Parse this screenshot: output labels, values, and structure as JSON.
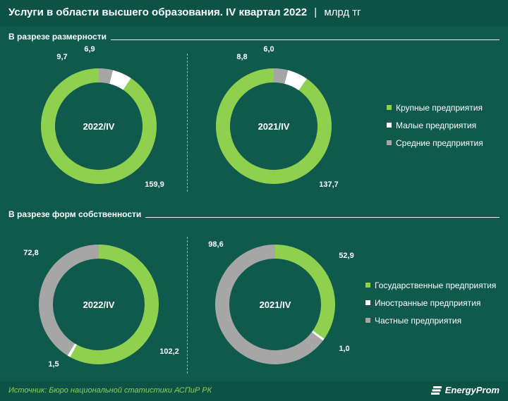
{
  "title": {
    "main": "Услуги в области высшего образования. IV квартал 2022",
    "separator": "|",
    "unit": "млрд тг"
  },
  "colors": {
    "background": "#0f5a4c",
    "green": "#8fd14f",
    "white": "#ffffff",
    "gray": "#a6a6a6"
  },
  "chart_data": [
    {
      "type": "pie",
      "section": "В разрезе размерности",
      "center_label": "2022/IV",
      "categories": [
        "Крупные предприятия",
        "Малые предприятия",
        "Средние предприятия"
      ],
      "values": [
        159.9,
        9.7,
        6.9
      ],
      "labels": [
        "159,9",
        "9,7",
        "6,9"
      ]
    },
    {
      "type": "pie",
      "section": "В разрезе размерности",
      "center_label": "2021/IV",
      "categories": [
        "Крупные предприятия",
        "Малые предприятия",
        "Средние предприятия"
      ],
      "values": [
        137.7,
        8.8,
        6.0
      ],
      "labels": [
        "137,7",
        "8,8",
        "6,0"
      ]
    },
    {
      "type": "pie",
      "section": "В разрезе форм собственности",
      "center_label": "2022/IV",
      "categories": [
        "Государственные предприятия",
        "Иностранные предприятия",
        "Частные предприятия"
      ],
      "values": [
        102.2,
        1.5,
        72.8
      ],
      "labels": [
        "102,2",
        "1,5",
        "72,8"
      ]
    },
    {
      "type": "pie",
      "section": "В разрезе форм собственности",
      "center_label": "2021/IV",
      "categories": [
        "Государственные предприятия",
        "Иностранные предприятия",
        "Частные предприятия"
      ],
      "values": [
        52.9,
        1.0,
        98.6
      ],
      "labels": [
        "52,9",
        "1,0",
        "98,6"
      ]
    }
  ],
  "sections": [
    {
      "label": "В разрезе размерности",
      "legend": [
        {
          "label": "Крупные предприятия",
          "color": "#8fd14f"
        },
        {
          "label": "Малые предприятия",
          "color": "#ffffff"
        },
        {
          "label": "Средние предприятия",
          "color": "#a6a6a6"
        }
      ]
    },
    {
      "label": "В разрезе форм собственности",
      "legend": [
        {
          "label": "Государственные предприятия",
          "color": "#8fd14f"
        },
        {
          "label": "Иностранные предприятия",
          "color": "#ffffff"
        },
        {
          "label": "Частные предприятия",
          "color": "#a6a6a6"
        }
      ]
    }
  ],
  "footer": {
    "source": "Источник: Бюро национальной статистики АСПиР РК",
    "logo": "EnergyProm"
  }
}
